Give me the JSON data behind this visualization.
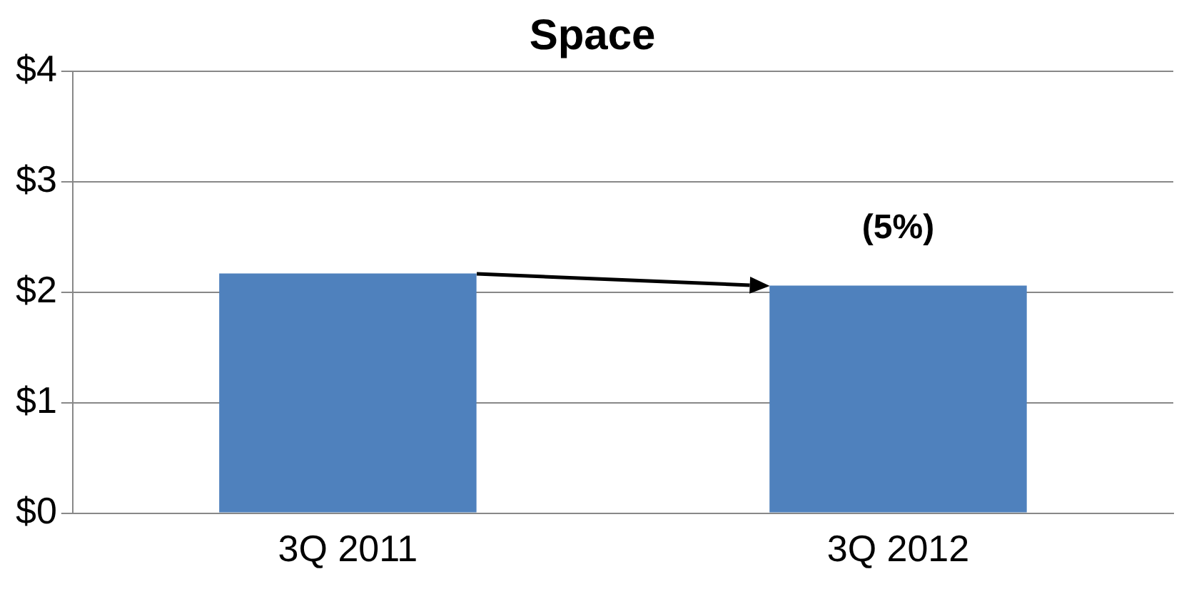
{
  "chart_data": {
    "type": "bar",
    "title": "Space",
    "categories": [
      "3Q 2011",
      "3Q 2012"
    ],
    "values": [
      2.17,
      2.06
    ],
    "color": "#4f81bd",
    "ylim": [
      0,
      4
    ],
    "yticks": [
      {
        "value": 0,
        "label": "$0"
      },
      {
        "value": 1,
        "label": "$1"
      },
      {
        "value": 2,
        "label": "$2"
      },
      {
        "value": 3,
        "label": "$3"
      },
      {
        "value": 4,
        "label": "$4"
      }
    ],
    "grid": "y",
    "legend": false,
    "annotations": [
      {
        "text": "(5%)",
        "x": "3Q 2012",
        "y": 2.06
      }
    ]
  }
}
